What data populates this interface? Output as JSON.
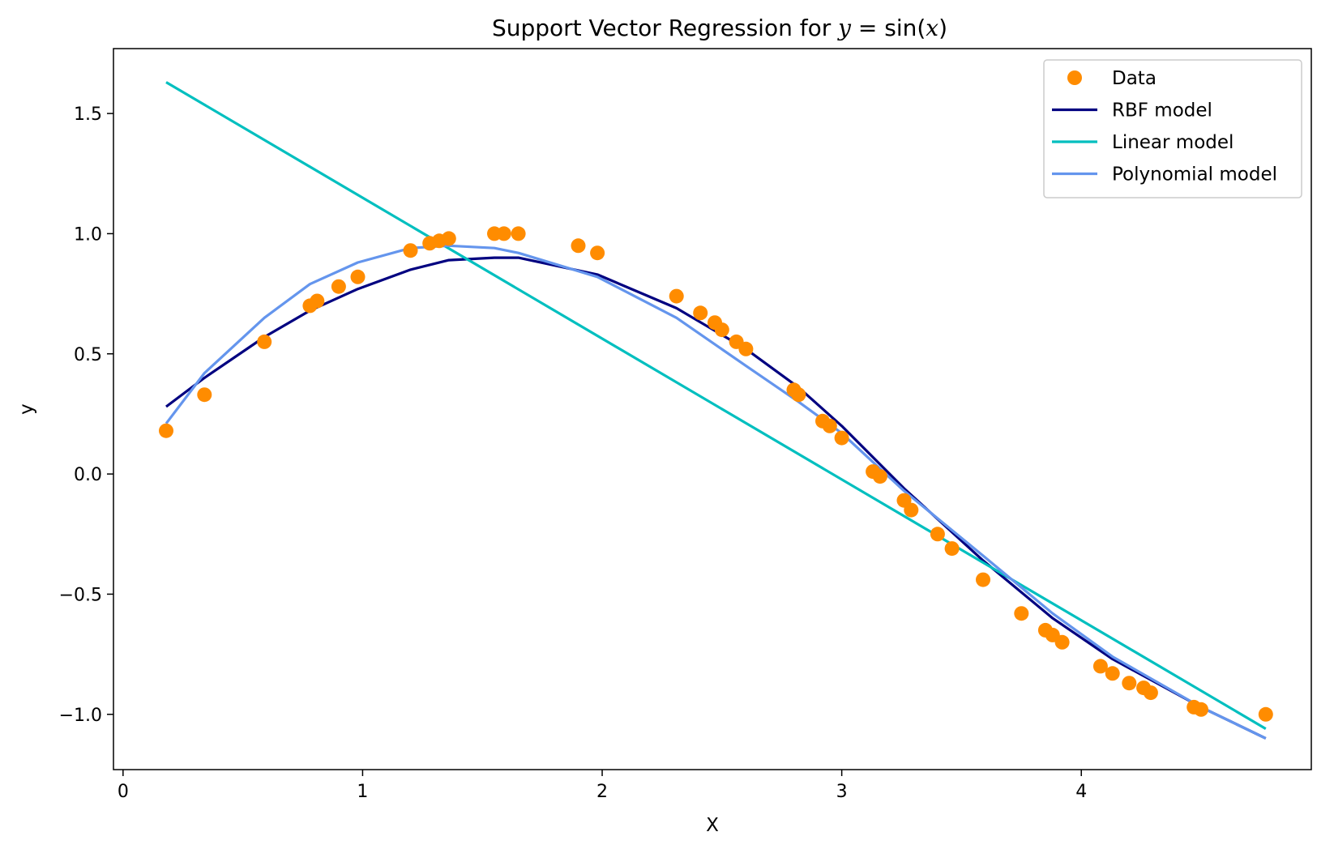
{
  "chart_data": {
    "type": "scatter",
    "title": "Support Vector Regression for y = sin(x)",
    "xlabel": "X",
    "ylabel": "y",
    "xlim": [
      -0.04,
      4.96
    ],
    "ylim": [
      -1.23,
      1.77
    ],
    "xticks": [
      0,
      1,
      2,
      3,
      4
    ],
    "xtick_labels": [
      "0",
      "1",
      "2",
      "3",
      "4"
    ],
    "yticks": [
      -1.0,
      -0.5,
      0.0,
      0.5,
      1.0,
      1.5
    ],
    "ytick_labels": [
      "−1.0",
      "−0.5",
      "0.0",
      "0.5",
      "1.0",
      "1.5"
    ],
    "grid": false,
    "legend_position": "top-right",
    "series": [
      {
        "name": "Data",
        "kind": "scatter",
        "color": "#ff8c00",
        "x": [
          0.18,
          0.34,
          0.59,
          0.78,
          0.81,
          0.9,
          0.98,
          1.2,
          1.28,
          1.32,
          1.36,
          1.55,
          1.59,
          1.65,
          1.9,
          1.98,
          2.31,
          2.41,
          2.47,
          2.5,
          2.56,
          2.6,
          2.8,
          2.82,
          2.92,
          2.95,
          3.0,
          3.13,
          3.16,
          3.26,
          3.29,
          3.4,
          3.46,
          3.59,
          3.75,
          3.85,
          3.88,
          3.92,
          4.08,
          4.13,
          4.2,
          4.26,
          4.29,
          4.47,
          4.5,
          4.77
        ],
        "y": [
          0.18,
          0.33,
          0.55,
          0.7,
          0.72,
          0.78,
          0.82,
          0.93,
          0.96,
          0.97,
          0.98,
          1.0,
          1.0,
          1.0,
          0.95,
          0.92,
          0.74,
          0.67,
          0.63,
          0.6,
          0.55,
          0.52,
          0.35,
          0.33,
          0.22,
          0.2,
          0.15,
          0.01,
          -0.01,
          -0.11,
          -0.15,
          -0.25,
          -0.31,
          -0.44,
          -0.58,
          -0.65,
          -0.67,
          -0.7,
          -0.8,
          -0.83,
          -0.87,
          -0.89,
          -0.91,
          -0.97,
          -0.98,
          -1.0
        ]
      },
      {
        "name": "RBF model",
        "kind": "line",
        "color": "#000080",
        "x": [
          0.18,
          0.34,
          0.59,
          0.78,
          0.98,
          1.2,
          1.36,
          1.55,
          1.65,
          1.98,
          2.31,
          2.6,
          2.82,
          3.0,
          3.26,
          3.59,
          3.88,
          4.13,
          4.5,
          4.77
        ],
        "y": [
          0.28,
          0.4,
          0.57,
          0.68,
          0.77,
          0.85,
          0.89,
          0.9,
          0.9,
          0.83,
          0.69,
          0.52,
          0.36,
          0.2,
          -0.06,
          -0.36,
          -0.6,
          -0.77,
          -0.97,
          -1.1
        ]
      },
      {
        "name": "Linear model",
        "kind": "line",
        "color": "#00bfbf",
        "x": [
          0.18,
          4.77
        ],
        "y": [
          1.63,
          -1.06
        ]
      },
      {
        "name": "Polynomial model",
        "kind": "line",
        "color": "#6495ed",
        "x": [
          0.18,
          0.34,
          0.59,
          0.78,
          0.98,
          1.2,
          1.36,
          1.55,
          1.65,
          1.98,
          2.31,
          2.6,
          2.82,
          3.0,
          3.26,
          3.59,
          3.88,
          4.13,
          4.5,
          4.77
        ],
        "y": [
          0.21,
          0.42,
          0.65,
          0.79,
          0.88,
          0.94,
          0.95,
          0.94,
          0.92,
          0.82,
          0.65,
          0.45,
          0.3,
          0.17,
          -0.07,
          -0.34,
          -0.58,
          -0.76,
          -0.97,
          -1.1
        ]
      }
    ]
  }
}
